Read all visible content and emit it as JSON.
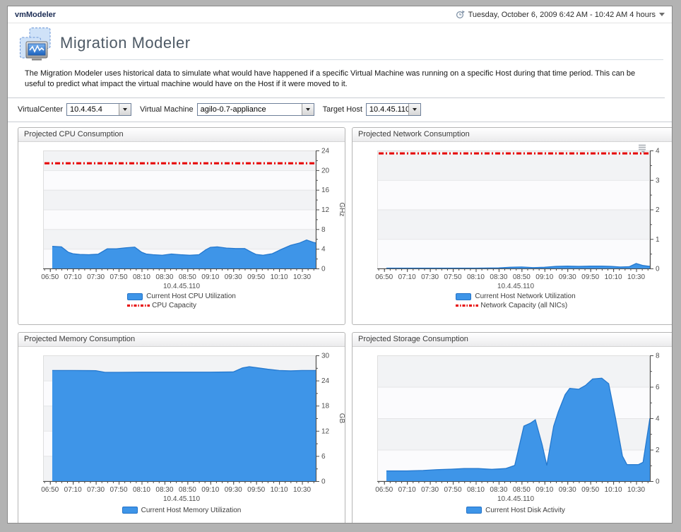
{
  "window": {
    "app_title": "vmModeler"
  },
  "timebar": {
    "range_label": "Tuesday, October 6, 2009 6:42 AM - 10:42 AM 4 hours",
    "icon": "time-range-icon",
    "dropdown_icon": "chevron-down-icon"
  },
  "header": {
    "title": "Migration Modeler",
    "description": "The Migration Modeler uses historical data to simulate what would have happened if a specific Virtual Machine was running on a specific Host during that time period. This can be useful to predict what impact the virtual machine would have on the Host if it were moved to it."
  },
  "filters": {
    "virtualcenter": {
      "label": "VirtualCenter",
      "value": "10.4.45.4"
    },
    "virtual_machine": {
      "label": "Virtual Machine",
      "value": "agilo-0.7-appliance"
    },
    "target_host": {
      "label": "Target Host",
      "value": "10.4.45.110"
    }
  },
  "colors": {
    "series_blue": "#3E95E8",
    "series_blue_edge": "#2478CE",
    "capacity_red": "#E60000",
    "band_dark": "#f2f3f5",
    "band_light": "#fbfbfd",
    "axis": "#4a4a4a",
    "tick_text": "#4f4f4f"
  },
  "chart_data": [
    {
      "type": "area",
      "panel_title": "Projected CPU Consumption",
      "xlabel": "10.4.45.110",
      "ylabel": "GHz",
      "ylim": [
        0,
        24
      ],
      "ytick_step": 4,
      "yminor_step": 2,
      "x_range": [
        "06:44",
        "10:42"
      ],
      "xticks": [
        "06:50",
        "07:10",
        "07:30",
        "07:50",
        "08:10",
        "08:30",
        "08:50",
        "09:10",
        "09:30",
        "09:50",
        "10:10",
        "10:30"
      ],
      "capacity": {
        "label": "CPU Capacity",
        "value": 21.4
      },
      "series": [
        {
          "name": "Current Host CPU Utilization",
          "points": [
            [
              "06:52",
              4.5
            ],
            [
              "07:00",
              4.4
            ],
            [
              "07:06",
              3.3
            ],
            [
              "07:10",
              3.0
            ],
            [
              "07:16",
              2.85
            ],
            [
              "07:24",
              2.8
            ],
            [
              "07:32",
              2.9
            ],
            [
              "07:40",
              4.0
            ],
            [
              "07:48",
              4.0
            ],
            [
              "07:56",
              4.2
            ],
            [
              "08:04",
              4.35
            ],
            [
              "08:10",
              3.3
            ],
            [
              "08:14",
              2.95
            ],
            [
              "08:20",
              2.8
            ],
            [
              "08:28",
              2.7
            ],
            [
              "08:36",
              2.95
            ],
            [
              "08:44",
              2.8
            ],
            [
              "08:52",
              2.7
            ],
            [
              "09:00",
              2.8
            ],
            [
              "09:06",
              3.8
            ],
            [
              "09:10",
              4.3
            ],
            [
              "09:16",
              4.4
            ],
            [
              "09:24",
              4.15
            ],
            [
              "09:32",
              4.05
            ],
            [
              "09:40",
              4.05
            ],
            [
              "09:46",
              3.3
            ],
            [
              "09:50",
              2.85
            ],
            [
              "09:56",
              2.7
            ],
            [
              "10:04",
              3.0
            ],
            [
              "10:12",
              3.9
            ],
            [
              "10:20",
              4.7
            ],
            [
              "10:28",
              5.2
            ],
            [
              "10:34",
              5.8
            ],
            [
              "10:40",
              5.3
            ],
            [
              "10:42",
              5.2
            ]
          ]
        }
      ]
    },
    {
      "type": "area",
      "panel_title": "Projected Network Consumption",
      "xlabel": "10.4.45.110",
      "ylabel": "Gb/s",
      "ylim": [
        0,
        4
      ],
      "ytick_step": 1,
      "yminor_step": 0.5,
      "x_range": [
        "06:44",
        "10:42"
      ],
      "xticks": [
        "06:50",
        "07:10",
        "07:30",
        "07:50",
        "08:10",
        "08:30",
        "08:50",
        "09:10",
        "09:30",
        "09:50",
        "10:10",
        "10:30"
      ],
      "capacity": {
        "label": "Network Capacity (all NICs)",
        "value": 3.9
      },
      "has_menu": true,
      "series": [
        {
          "name": "Current Host Network Utilization",
          "points": [
            [
              "06:52",
              0.01
            ],
            [
              "07:30",
              0.01
            ],
            [
              "08:10",
              0.01
            ],
            [
              "08:30",
              0.02
            ],
            [
              "08:40",
              0.04
            ],
            [
              "08:50",
              0.05
            ],
            [
              "09:00",
              0.03
            ],
            [
              "09:10",
              0.04
            ],
            [
              "09:20",
              0.07
            ],
            [
              "09:30",
              0.08
            ],
            [
              "09:40",
              0.07
            ],
            [
              "09:50",
              0.08
            ],
            [
              "10:00",
              0.08
            ],
            [
              "10:08",
              0.07
            ],
            [
              "10:16",
              0.05
            ],
            [
              "10:24",
              0.06
            ],
            [
              "10:30",
              0.17
            ],
            [
              "10:36",
              0.1
            ],
            [
              "10:42",
              0.07
            ]
          ]
        }
      ]
    },
    {
      "type": "area",
      "panel_title": "Projected Memory Consumption",
      "xlabel": "10.4.45.110",
      "ylabel": "GB",
      "ylim": [
        0,
        30
      ],
      "ytick_step": 6,
      "yminor_step": 3,
      "x_range": [
        "06:44",
        "10:42"
      ],
      "xticks": [
        "06:50",
        "07:10",
        "07:30",
        "07:50",
        "08:10",
        "08:30",
        "08:50",
        "09:10",
        "09:30",
        "09:50",
        "10:10",
        "10:30"
      ],
      "series": [
        {
          "name": "Current Host Memory Utilization",
          "points": [
            [
              "06:52",
              26.4
            ],
            [
              "07:10",
              26.4
            ],
            [
              "07:30",
              26.35
            ],
            [
              "07:38",
              25.95
            ],
            [
              "07:50",
              25.95
            ],
            [
              "08:10",
              26.0
            ],
            [
              "08:30",
              26.0
            ],
            [
              "08:50",
              26.0
            ],
            [
              "09:10",
              26.0
            ],
            [
              "09:30",
              26.05
            ],
            [
              "09:38",
              27.0
            ],
            [
              "09:44",
              27.3
            ],
            [
              "09:52",
              27.0
            ],
            [
              "10:00",
              26.7
            ],
            [
              "10:10",
              26.4
            ],
            [
              "10:20",
              26.3
            ],
            [
              "10:30",
              26.4
            ],
            [
              "10:42",
              26.4
            ]
          ]
        }
      ]
    },
    {
      "type": "area",
      "panel_title": "Projected Storage Consumption",
      "xlabel": "10.4.45.110",
      "ylabel": "MB/s",
      "ylim": [
        0,
        8
      ],
      "ytick_step": 2,
      "yminor_step": 1,
      "x_range": [
        "06:44",
        "10:42"
      ],
      "xticks": [
        "06:50",
        "07:10",
        "07:30",
        "07:50",
        "08:10",
        "08:30",
        "08:50",
        "09:10",
        "09:30",
        "09:50",
        "10:10",
        "10:30"
      ],
      "series": [
        {
          "name": "Current Host Disk Activity",
          "points": [
            [
              "06:52",
              0.65
            ],
            [
              "07:10",
              0.65
            ],
            [
              "07:24",
              0.68
            ],
            [
              "07:36",
              0.73
            ],
            [
              "07:48",
              0.76
            ],
            [
              "08:00",
              0.8
            ],
            [
              "08:12",
              0.8
            ],
            [
              "08:24",
              0.75
            ],
            [
              "08:36",
              0.8
            ],
            [
              "08:44",
              1.0
            ],
            [
              "08:52",
              3.5
            ],
            [
              "08:58",
              3.7
            ],
            [
              "09:02",
              3.9
            ],
            [
              "09:08",
              2.3
            ],
            [
              "09:12",
              1.0
            ],
            [
              "09:18",
              3.5
            ],
            [
              "09:22",
              4.4
            ],
            [
              "09:28",
              5.5
            ],
            [
              "09:32",
              5.9
            ],
            [
              "09:40",
              5.85
            ],
            [
              "09:46",
              6.1
            ],
            [
              "09:52",
              6.5
            ],
            [
              "10:00",
              6.55
            ],
            [
              "10:06",
              6.2
            ],
            [
              "10:12",
              4.0
            ],
            [
              "10:18",
              1.6
            ],
            [
              "10:22",
              1.05
            ],
            [
              "10:32",
              1.05
            ],
            [
              "10:36",
              1.2
            ],
            [
              "10:42",
              4.0
            ]
          ]
        }
      ]
    }
  ]
}
